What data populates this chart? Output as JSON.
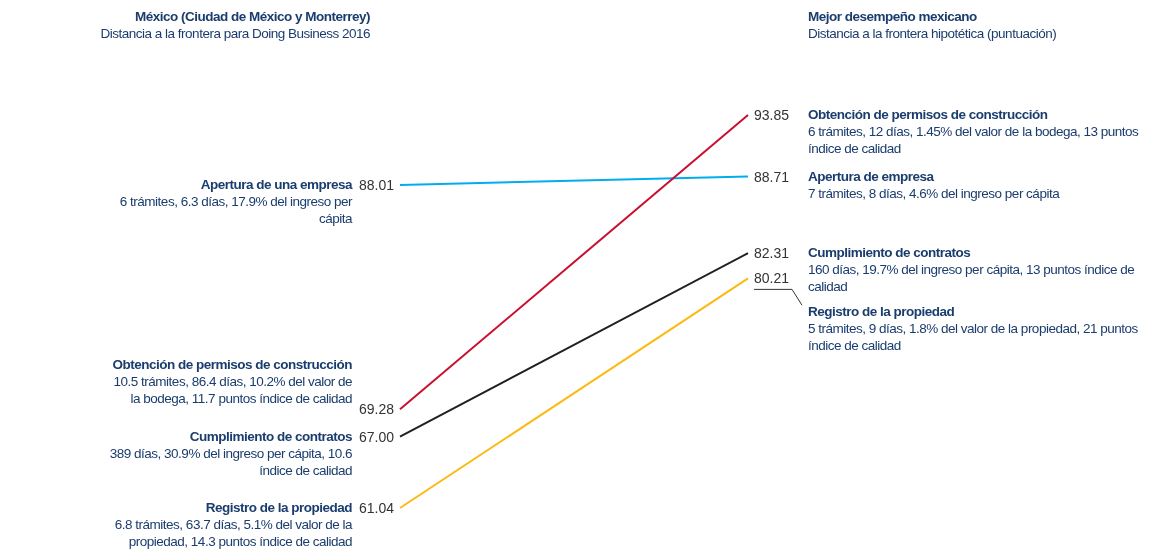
{
  "chart_data": {
    "type": "line",
    "title": "México (Ciudad de México y Monterrey)",
    "subtitle": "Distancia a la frontera para Doing Business 2016",
    "categories": [
      null,
      null
    ],
    "data_labels": true,
    "series": [
      {
        "color": "#00aeef",
        "values": [
          88.01,
          88.71
        ],
        "value_labels": [
          "88.01",
          "88.71"
        ]
      },
      {
        "color": "#c8102e",
        "values": [
          69.28,
          93.85
        ],
        "value_labels": [
          "69.28",
          "93.85"
        ]
      },
      {
        "color": "#231f20",
        "values": [
          67.0,
          82.31
        ],
        "value_labels": [
          "67.00",
          "82.31"
        ]
      },
      {
        "color": "#fdb913",
        "values": [
          61.04,
          80.21
        ],
        "value_labels": [
          "61.04",
          "80.21"
        ]
      }
    ],
    "annotations": [
      "Mejor desempeño mexicano",
      "Distancia a la frontera hipotética (puntuación)",
      "Apertura de una empresa",
      "6 trámites, 6.3 días, 17.9% del ingreso per cápita",
      "Apertura de empresa",
      "7 trámites, 8 días, 4.6% del ingreso per cápita",
      "Obtención de permisos de construcción",
      "10.5 trámites, 86.4 días, 10.2% del valor de la bodega, 11.7 puntos índice de calidad",
      "Obtención de permisos de construcción",
      "6 trámites, 12 días, 1.45% del valor de la bodega, 13 puntos índice de calidad",
      "Cumplimiento de contratos",
      "389 días, 30.9% del ingreso per cápita, 10.6 índice de calidad",
      "Cumplimiento de contratos",
      "160 días, 19.7% del ingreso per cápita, 13 puntos índice de calidad",
      "Registro de la propiedad",
      "6.8 trámites, 63.7 días, 5.1% del valor de la propiedad, 14.3 puntos índice de calidad",
      "Registro de la propiedad",
      "5 trámites, 9 días, 1.8% del valor de la propiedad, 21 puntos índice de calidad"
    ]
  }
}
